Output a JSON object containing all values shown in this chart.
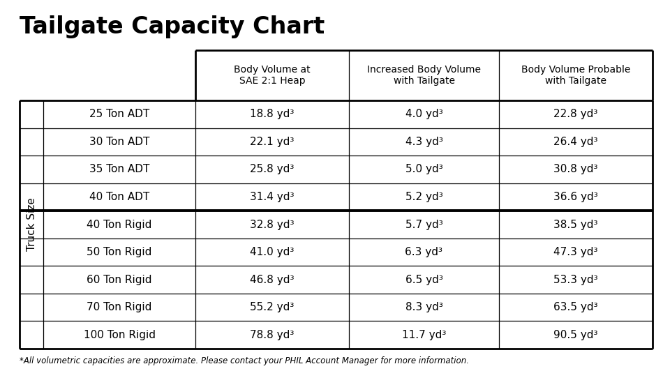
{
  "title": "Tailgate Capacity Chart",
  "footnote": "*All volumetric capacities are approximate. Please contact your PHIL Account Manager for more information.",
  "col_headers": [
    "Body Volume at\nSAE 2:1 Heap",
    "Increased Body Volume\nwith Tailgate",
    "Body Volume Probable\nwith Tailgate"
  ],
  "row_label": "Truck Size",
  "rows": [
    {
      "truck": "25 Ton ADT",
      "v1": "18.8",
      "v2": "4.0",
      "v3": "22.8",
      "adt": true
    },
    {
      "truck": "30 Ton ADT",
      "v1": "22.1",
      "v2": "4.3",
      "v3": "26.4",
      "adt": true
    },
    {
      "truck": "35 Ton ADT",
      "v1": "25.8",
      "v2": "5.0",
      "v3": "30.8",
      "adt": true
    },
    {
      "truck": "40 Ton ADT",
      "v1": "31.4",
      "v2": "5.2",
      "v3": "36.6",
      "adt": true
    },
    {
      "truck": "40 Ton Rigid",
      "v1": "32.8",
      "v2": "5.7",
      "v3": "38.5",
      "adt": false
    },
    {
      "truck": "50 Ton Rigid",
      "v1": "41.0",
      "v2": "6.3",
      "v3": "47.3",
      "adt": false
    },
    {
      "truck": "60 Ton Rigid",
      "v1": "46.8",
      "v2": "6.5",
      "v3": "53.3",
      "adt": false
    },
    {
      "truck": "70 Ton Rigid",
      "v1": "55.2",
      "v2": "8.3",
      "v3": "63.5",
      "adt": false
    },
    {
      "truck": "100 Ton Rigid",
      "v1": "78.8",
      "v2": "11.7",
      "v3": "90.5",
      "adt": false
    }
  ],
  "bg_color": "#ffffff",
  "text_color": "#000000",
  "title_fontsize": 24,
  "header_fontsize": 10,
  "cell_fontsize": 11,
  "footnote_fontsize": 8.5,
  "label_fontsize": 11,
  "lw_outer": 2.0,
  "lw_inner": 0.9,
  "lw_thick": 2.8
}
